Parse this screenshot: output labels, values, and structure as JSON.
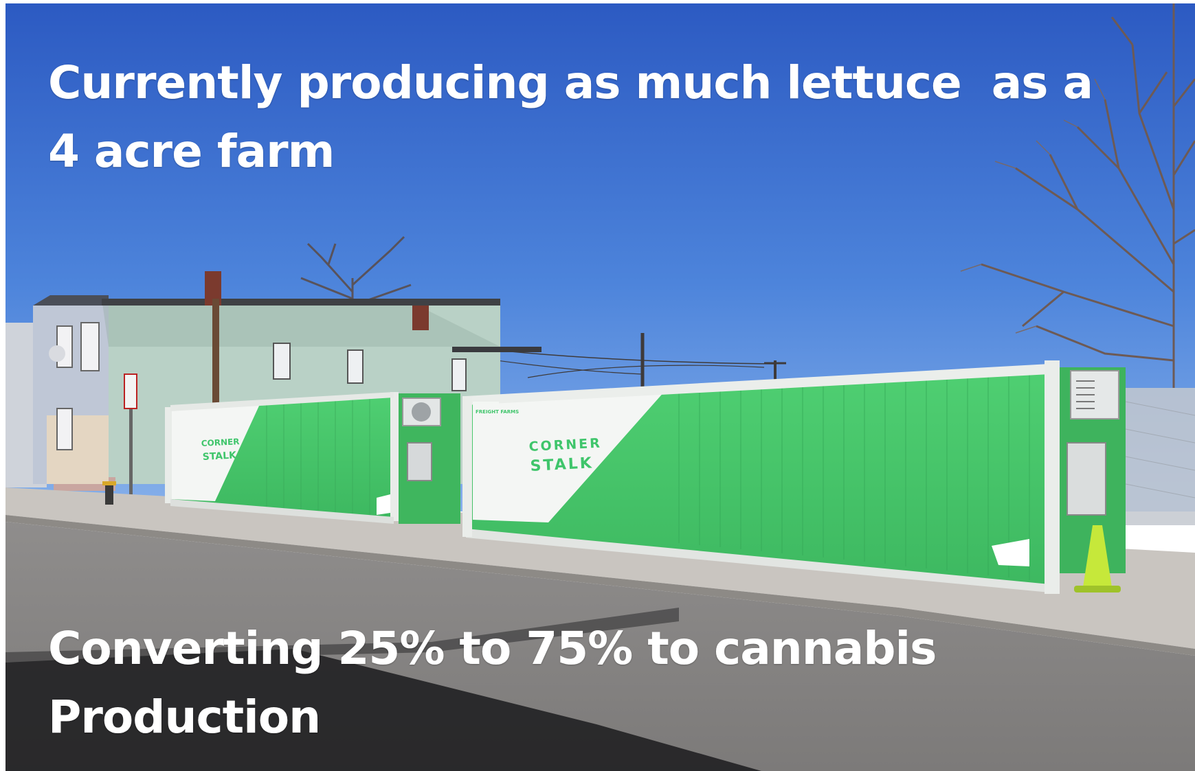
{
  "captions": {
    "top": [
      "Currently producing as much lettuce  as a",
      "4 acre farm"
    ],
    "bottom": [
      "Converting 25% to 75% to cannabis",
      "Production"
    ]
  },
  "containers": {
    "left": {
      "brand_line1": "CORNER",
      "brand_line2": "STALK"
    },
    "right": {
      "brand_line1": "CORNER",
      "brand_line2": "STALK",
      "maker": "FREIGHT FARMS"
    }
  },
  "colors": {
    "sky_top": "#2e5fc4",
    "sky_bottom": "#7aa6e8",
    "container_green": "#46c86a",
    "caption_text": "#ffffff"
  }
}
